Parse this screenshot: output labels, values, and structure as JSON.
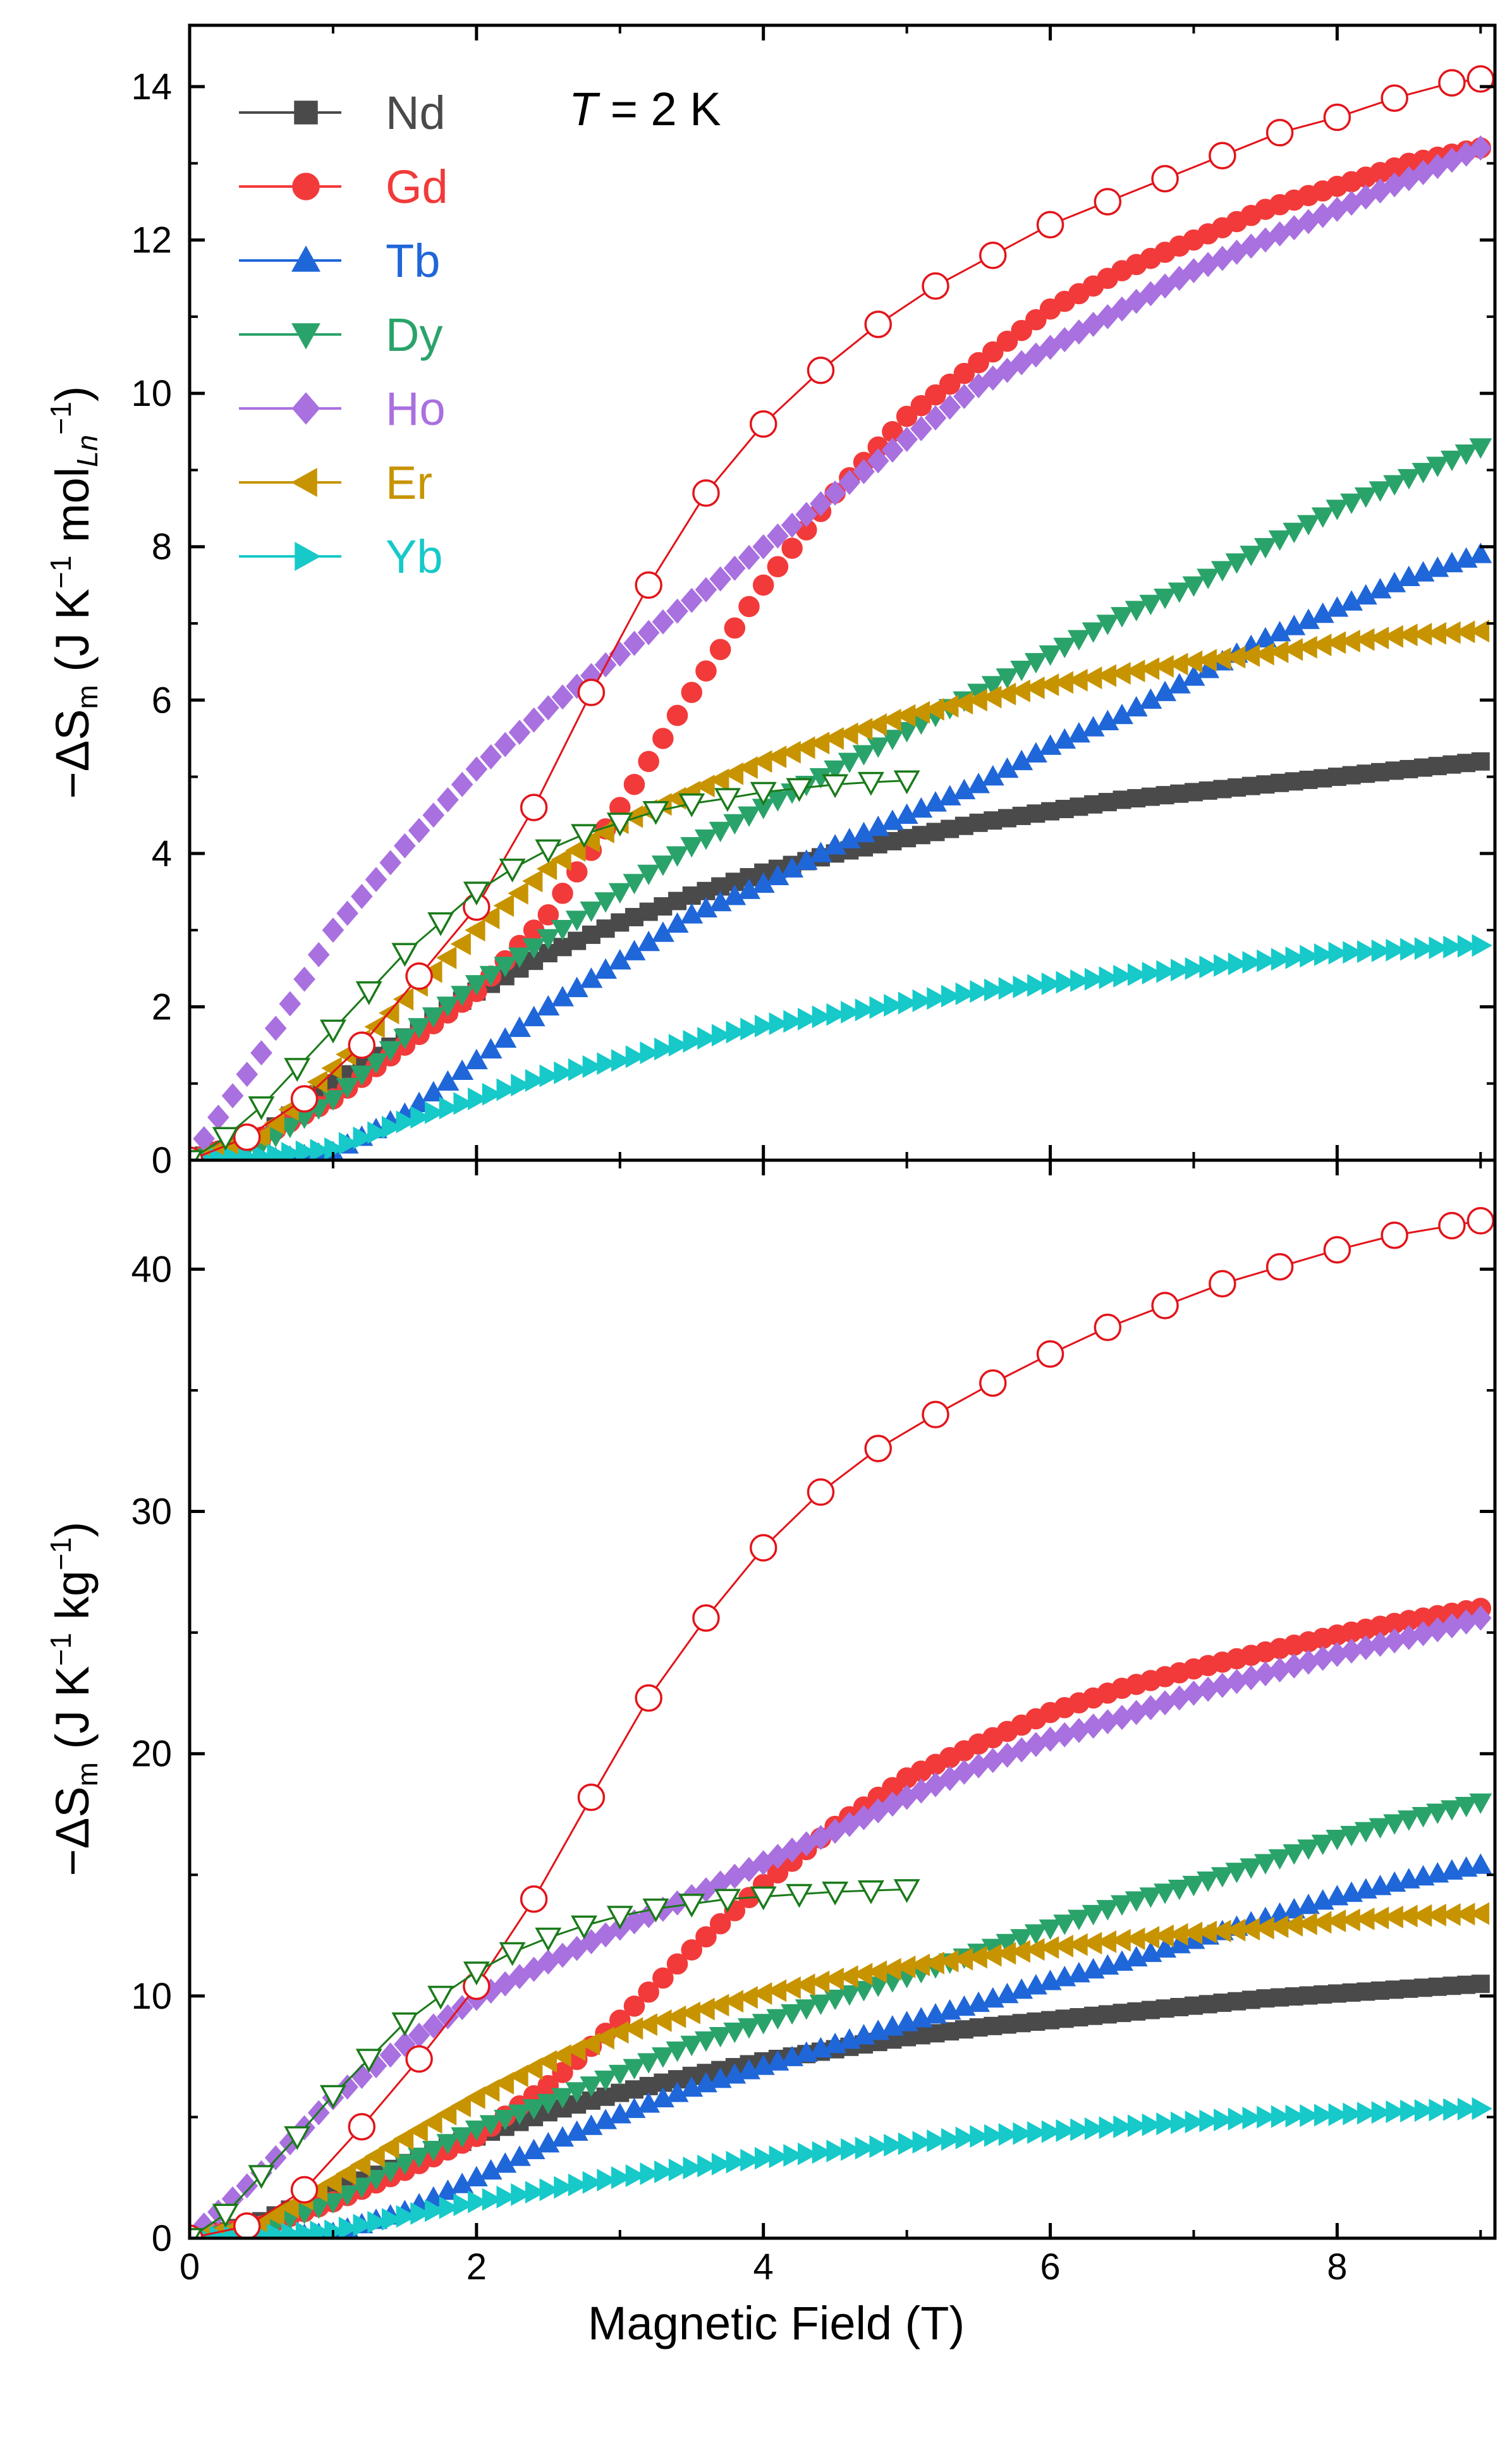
{
  "chart_data": {
    "type": "scatter",
    "annotation": {
      "italic": "T",
      "rest": " = 2 K"
    },
    "xlabel": "Magnetic Field (T)",
    "xlim": [
      0,
      9.1
    ],
    "xticks": [
      "0",
      "2",
      "4",
      "6",
      "8"
    ],
    "legend_position": "top-left",
    "series": [
      {
        "name": "Nd",
        "color": "#4a4a4a",
        "marker": "square"
      },
      {
        "name": "Gd",
        "color": "#f23a3a",
        "marker": "circle"
      },
      {
        "name": "Tb",
        "color": "#1f66d9",
        "marker": "triangle-up"
      },
      {
        "name": "Dy",
        "color": "#2aa36a",
        "marker": "triangle-down"
      },
      {
        "name": "Ho",
        "color": "#a970e0",
        "marker": "diamond"
      },
      {
        "name": "Er",
        "color": "#c79400",
        "marker": "triangle-left"
      },
      {
        "name": "Yb",
        "color": "#17c9c9",
        "marker": "triangle-right"
      }
    ],
    "panels": [
      {
        "ylabel": {
          "pre": "−ΔS",
          "sub1": "m",
          "mid": " (J K",
          "sup1": "−1",
          "mid2": " mol",
          "sub2": "Ln",
          "sup2": "−1",
          "end": ")"
        },
        "ylim": [
          0,
          14.8
        ],
        "yticks": [
          "0",
          "2",
          "4",
          "6",
          "8",
          "10",
          "12",
          "14"
        ],
        "curves": {
          "Nd": {
            "xs": [
              0,
              0.5,
              1,
              1.5,
              2,
              2.5,
              3,
              3.5,
              4,
              4.5,
              5,
              5.5,
              6,
              6.5,
              7,
              7.5,
              8,
              8.5,
              9
            ],
            "ys": [
              0,
              0.3,
              1.0,
              1.6,
              2.2,
              2.7,
              3.1,
              3.45,
              3.75,
              4.0,
              4.2,
              4.4,
              4.55,
              4.7,
              4.8,
              4.9,
              5.0,
              5.1,
              5.2
            ]
          },
          "Gd": {
            "xs": [
              0,
              0.5,
              1,
              1.5,
              2,
              2.5,
              3,
              3.5,
              4,
              4.5,
              5,
              5.5,
              6,
              6.5,
              7,
              7.5,
              8,
              8.5,
              9
            ],
            "ys": [
              0,
              0.3,
              0.8,
              1.5,
              2.2,
              3.2,
              4.6,
              6.1,
              7.5,
              8.7,
              9.7,
              10.4,
              11.1,
              11.6,
              12.0,
              12.4,
              12.7,
              13.0,
              13.2
            ]
          },
          "Tb": {
            "xs": [
              0,
              0.5,
              1,
              1.5,
              2,
              2.5,
              3,
              3.5,
              4,
              4.5,
              5,
              5.5,
              6,
              6.5,
              7,
              7.5,
              8,
              8.5,
              9
            ],
            "ys": [
              0,
              0,
              0.1,
              0.6,
              1.3,
              2.0,
              2.6,
              3.2,
              3.6,
              4.1,
              4.5,
              4.9,
              5.4,
              5.8,
              6.3,
              6.8,
              7.2,
              7.6,
              7.9
            ]
          },
          "Dy": {
            "xs": [
              0,
              0.5,
              1,
              1.5,
              2,
              2.5,
              3,
              3.5,
              4,
              4.5,
              5,
              5.5,
              6,
              6.5,
              7,
              7.5,
              8,
              8.5,
              9
            ],
            "ys": [
              0,
              0.2,
              0.8,
              1.6,
              2.3,
              2.9,
              3.5,
              4.1,
              4.6,
              5.1,
              5.6,
              6.1,
              6.6,
              7.1,
              7.5,
              8.0,
              8.5,
              8.9,
              9.3
            ]
          },
          "Ho": {
            "xs": [
              0,
              0.5,
              1,
              1.5,
              2,
              2.5,
              3,
              3.5,
              4,
              4.5,
              5,
              5.5,
              6,
              6.5,
              7,
              7.5,
              8,
              8.5,
              9
            ],
            "ys": [
              0,
              1.4,
              3.0,
              4.1,
              5.1,
              5.9,
              6.6,
              7.3,
              8.0,
              8.7,
              9.4,
              10.1,
              10.6,
              11.1,
              11.6,
              12.0,
              12.4,
              12.8,
              13.2
            ]
          },
          "Er": {
            "xs": [
              0,
              0.5,
              1,
              1.5,
              2,
              2.5,
              3,
              3.5,
              4,
              4.5,
              5,
              5.5,
              6,
              6.5,
              7,
              7.5,
              8,
              8.5,
              9
            ],
            "ys": [
              0,
              0.3,
              1.2,
              2.1,
              3.0,
              3.8,
              4.4,
              4.8,
              5.2,
              5.5,
              5.8,
              6.0,
              6.2,
              6.35,
              6.5,
              6.6,
              6.75,
              6.85,
              6.9
            ]
          },
          "Yb": {
            "xs": [
              0,
              0.5,
              1,
              1.5,
              2,
              2.5,
              3,
              3.5,
              4,
              4.5,
              5,
              5.5,
              6,
              6.5,
              7,
              7.5,
              8,
              8.5,
              9
            ],
            "ys": [
              0,
              0.05,
              0.15,
              0.5,
              0.8,
              1.1,
              1.3,
              1.55,
              1.75,
              1.9,
              2.05,
              2.2,
              2.3,
              2.4,
              2.5,
              2.6,
              2.7,
              2.75,
              2.8
            ]
          }
        },
        "gd_open": {
          "color": "#e3141a",
          "xs": [
            0,
            0.4,
            0.8,
            1.2,
            1.6,
            2.0,
            2.4,
            2.8,
            3.2,
            3.6,
            4.0,
            4.4,
            4.8,
            5.2,
            5.6,
            6.0,
            6.4,
            6.8,
            7.2,
            7.6,
            8.0,
            8.4,
            8.8,
            9.0
          ],
          "ys": [
            0,
            0.3,
            0.8,
            1.5,
            2.4,
            3.3,
            4.6,
            6.1,
            7.5,
            8.7,
            9.6,
            10.3,
            10.9,
            11.4,
            11.8,
            12.2,
            12.5,
            12.8,
            13.1,
            13.4,
            13.6,
            13.85,
            14.05,
            14.1
          ]
        },
        "dy_open": {
          "color": "#1a7a1a",
          "xs": [
            0,
            0.25,
            0.5,
            0.75,
            1.0,
            1.25,
            1.5,
            1.75,
            2.0,
            2.25,
            2.5,
            2.75,
            3.0,
            3.25,
            3.5,
            3.75,
            4.0,
            4.25,
            4.5,
            4.75,
            5.0
          ],
          "ys": [
            0,
            0.3,
            0.7,
            1.2,
            1.7,
            2.2,
            2.7,
            3.1,
            3.5,
            3.8,
            4.05,
            4.25,
            4.4,
            4.55,
            4.65,
            4.72,
            4.8,
            4.85,
            4.9,
            4.93,
            4.95
          ]
        }
      },
      {
        "ylabel": {
          "pre": "−ΔS",
          "sub1": "m",
          "mid": " (J K",
          "sup1": "−1",
          "mid2": " kg",
          "sub2": "",
          "sup2": "−1",
          "end": ")"
        },
        "ylim": [
          0,
          44.5
        ],
        "yticks": [
          "0",
          "10",
          "20",
          "30",
          "40"
        ],
        "curves": {
          "Nd": {
            "xs": [
              0,
              0.5,
              1,
              1.5,
              2,
              2.5,
              3,
              3.5,
              4,
              4.5,
              5,
              5.5,
              6,
              6.5,
              7,
              7.5,
              8,
              8.5,
              9
            ],
            "ys": [
              0,
              0.7,
              1.9,
              3.1,
              4.2,
              5.2,
              6.0,
              6.7,
              7.3,
              7.8,
              8.3,
              8.7,
              9.0,
              9.3,
              9.6,
              9.9,
              10.1,
              10.3,
              10.5
            ]
          },
          "Gd": {
            "xs": [
              0,
              0.5,
              1,
              1.5,
              2,
              2.5,
              3,
              3.5,
              4,
              4.5,
              5,
              5.5,
              6,
              6.5,
              7,
              7.5,
              8,
              8.5,
              9
            ],
            "ys": [
              0,
              0.5,
              1.5,
              2.8,
              4.2,
              6.3,
              9.0,
              11.9,
              14.6,
              17.0,
              19.0,
              20.4,
              21.7,
              22.7,
              23.5,
              24.2,
              24.9,
              25.5,
              26.0
            ]
          },
          "Tb": {
            "xs": [
              0,
              0.5,
              1,
              1.5,
              2,
              2.5,
              3,
              3.5,
              4,
              4.5,
              5,
              5.5,
              6,
              6.5,
              7,
              7.5,
              8,
              8.5,
              9
            ],
            "ys": [
              0,
              0,
              0.2,
              1.1,
              2.5,
              3.9,
              5.1,
              6.2,
              7.1,
              8.0,
              8.9,
              9.7,
              10.6,
              11.4,
              12.3,
              13.2,
              14.1,
              14.8,
              15.4
            ]
          },
          "Dy": {
            "xs": [
              0,
              0.5,
              1,
              1.5,
              2,
              2.5,
              3,
              3.5,
              4,
              4.5,
              5,
              5.5,
              6,
              6.5,
              7,
              7.5,
              8,
              8.5,
              9
            ],
            "ys": [
              0,
              0.4,
              1.5,
              3.1,
              4.5,
              5.6,
              6.8,
              8.0,
              8.9,
              9.9,
              10.8,
              11.8,
              12.8,
              13.8,
              14.6,
              15.5,
              16.5,
              17.3,
              18.0
            ]
          },
          "Ho": {
            "xs": [
              0,
              0.5,
              1,
              1.5,
              2,
              2.5,
              3,
              3.5,
              4,
              4.5,
              5,
              5.5,
              6,
              6.5,
              7,
              7.5,
              8,
              8.5,
              9
            ],
            "ys": [
              0,
              2.7,
              5.8,
              8.0,
              9.9,
              11.4,
              12.8,
              14.1,
              15.5,
              16.8,
              18.2,
              19.5,
              20.6,
              21.5,
              22.5,
              23.3,
              24.1,
              24.8,
              25.6
            ]
          },
          "Er": {
            "xs": [
              0,
              0.5,
              1,
              1.5,
              2,
              2.5,
              3,
              3.5,
              4,
              4.5,
              5,
              5.5,
              6,
              6.5,
              7,
              7.5,
              8,
              8.5,
              9
            ],
            "ys": [
              0,
              0.6,
              2.3,
              4.1,
              5.8,
              7.3,
              8.5,
              9.3,
              10.1,
              10.7,
              11.2,
              11.6,
              12.0,
              12.3,
              12.6,
              12.8,
              13.1,
              13.3,
              13.4
            ]
          },
          "Yb": {
            "xs": [
              0,
              0.5,
              1,
              1.5,
              2,
              2.5,
              3,
              3.5,
              4,
              4.5,
              5,
              5.5,
              6,
              6.5,
              7,
              7.5,
              8,
              8.5,
              9
            ],
            "ys": [
              0,
              0.1,
              0.3,
              0.9,
              1.5,
              2.0,
              2.5,
              2.9,
              3.3,
              3.6,
              3.9,
              4.2,
              4.4,
              4.6,
              4.8,
              5.0,
              5.1,
              5.25,
              5.35
            ]
          }
        },
        "gd_open": {
          "color": "#e3141a",
          "xs": [
            0,
            0.4,
            0.8,
            1.2,
            1.6,
            2.0,
            2.4,
            2.8,
            3.2,
            3.6,
            4.0,
            4.4,
            4.8,
            5.2,
            5.6,
            6.0,
            6.4,
            6.8,
            7.2,
            7.6,
            8.0,
            8.4,
            8.8,
            9.0
          ],
          "ys": [
            0,
            0.5,
            2.0,
            4.6,
            7.4,
            10.4,
            14.0,
            18.2,
            22.3,
            25.6,
            28.5,
            30.8,
            32.6,
            34.0,
            35.3,
            36.5,
            37.6,
            38.5,
            39.4,
            40.1,
            40.8,
            41.4,
            41.8,
            42.0
          ]
        },
        "dy_open": {
          "color": "#1a7a1a",
          "xs": [
            0,
            0.25,
            0.5,
            0.75,
            1.0,
            1.25,
            1.5,
            1.75,
            2.0,
            2.25,
            2.5,
            2.75,
            3.0,
            3.25,
            3.5,
            3.75,
            4.0,
            4.25,
            4.5,
            4.75,
            5.0
          ],
          "ys": [
            0,
            1.0,
            2.6,
            4.2,
            5.9,
            7.4,
            8.9,
            10.0,
            11.0,
            11.8,
            12.4,
            12.9,
            13.3,
            13.6,
            13.8,
            14.0,
            14.1,
            14.2,
            14.3,
            14.35,
            14.4
          ]
        }
      }
    ]
  }
}
